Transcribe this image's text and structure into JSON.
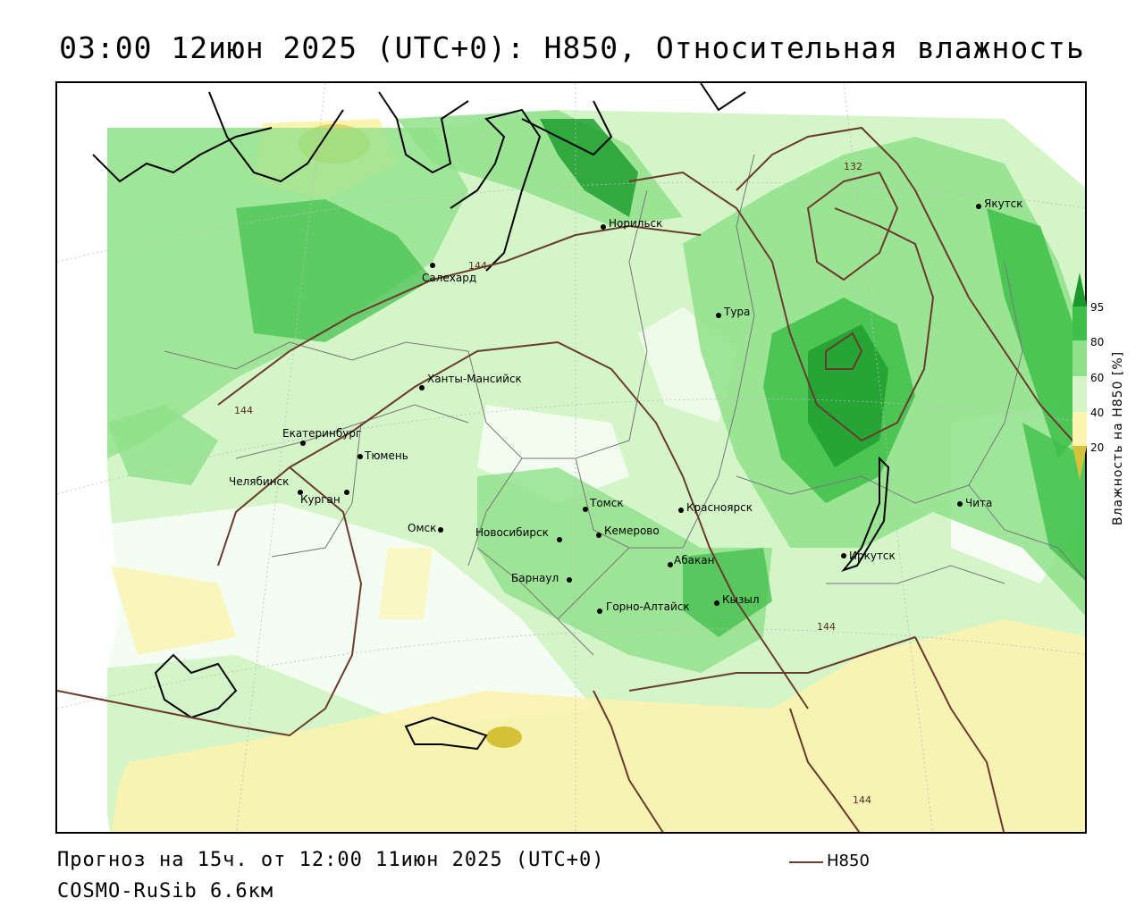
{
  "header": {
    "title": "03:00 12июн 2025 (UTC+0): H850, Относительная влажность"
  },
  "map": {
    "cities": [
      {
        "name": "Норильск"
      },
      {
        "name": "Якутск"
      },
      {
        "name": "Салехард"
      },
      {
        "name": "Тура"
      },
      {
        "name": "Ханты-Мансийск"
      },
      {
        "name": "Екатеринбург"
      },
      {
        "name": "Тюмень"
      },
      {
        "name": "Челябинск"
      },
      {
        "name": "Курган"
      },
      {
        "name": "Омск"
      },
      {
        "name": "Новосибирск"
      },
      {
        "name": "Томск"
      },
      {
        "name": "Кемерово"
      },
      {
        "name": "Красноярск"
      },
      {
        "name": "Абакан"
      },
      {
        "name": "Барнаул"
      },
      {
        "name": "Горно-Алтайск"
      },
      {
        "name": "Кызыл"
      },
      {
        "name": "Иркутск"
      },
      {
        "name": "Чита"
      }
    ],
    "contour_labels": [
      "132",
      "144",
      "144",
      "144",
      "144"
    ],
    "colors": {
      "contour": "#6b3a2e",
      "rh_20": "#d6c238",
      "rh_40": "#fbf3b0",
      "rh_60": "#d4f5c8",
      "rh_80": "#8fe08a",
      "rh_95": "#3fbf4a",
      "rh_max": "#179a2a"
    }
  },
  "colorbar": {
    "ticks": [
      "95",
      "80",
      "60",
      "40",
      "20"
    ],
    "title": "Влажность на H850 [%]"
  },
  "footer": {
    "forecast": "Прогноз на 15ч. от 12:00 11июн 2025 (UTC+0)",
    "model": "COSMO-RuSib 6.6км",
    "legend_label": "H850"
  }
}
